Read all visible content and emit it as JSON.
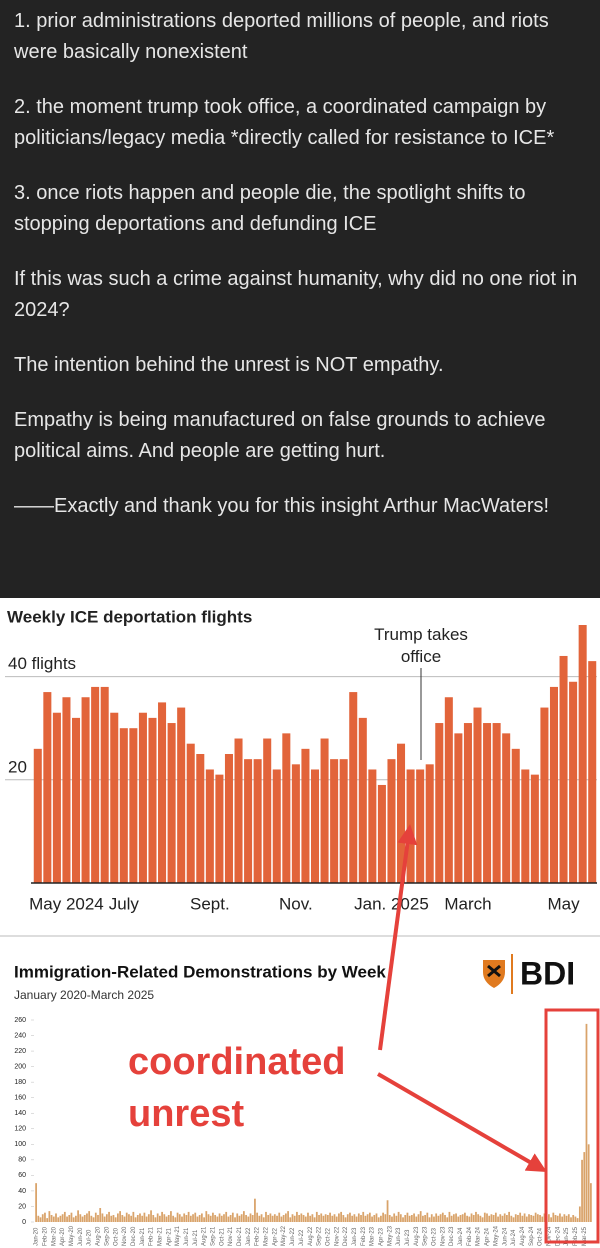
{
  "post": {
    "paragraphs": [
      "1. prior administrations deported millions of people, and riots were basically nonexistent",
      "2. the moment trump took office, a coordinated campaign by politicians/legacy media *directly called for resistance to ICE*",
      "3. once riots happen and people die, the spotlight shifts to stopping deportations and defunding ICE",
      "If this was such a crime against humanity, why did no one riot in 2024?",
      "The intention behind the unrest is NOT empathy.",
      "Empathy is being manufactured on false grounds to achieve political aims. And people are getting hurt.",
      "——Exactly and thank you for this insight Arthur MacWaters!"
    ]
  },
  "chart_data": [
    {
      "type": "bar",
      "title": "Weekly ICE deportation flights",
      "annotation": "Trump takes office",
      "categories": [
        null,
        null,
        null,
        "May 2024",
        null,
        null,
        null,
        null,
        null,
        "July",
        null,
        null,
        null,
        null,
        null,
        null,
        null,
        null,
        "Sept.",
        null,
        null,
        null,
        null,
        null,
        null,
        null,
        null,
        "Nov.",
        null,
        null,
        null,
        null,
        null,
        null,
        null,
        null,
        null,
        "Jan. 2025",
        null,
        null,
        null,
        null,
        null,
        null,
        null,
        "March",
        null,
        null,
        null,
        null,
        null,
        null,
        null,
        null,
        null,
        "May",
        null,
        null,
        null
      ],
      "values": [
        26,
        37,
        33,
        36,
        32,
        36,
        38,
        38,
        33,
        30,
        30,
        33,
        32,
        35,
        31,
        34,
        27,
        25,
        22,
        21,
        25,
        28,
        24,
        24,
        28,
        22,
        29,
        23,
        26,
        22,
        28,
        24,
        24,
        37,
        32,
        22,
        19,
        24,
        27,
        22,
        22,
        23,
        31,
        36,
        29,
        31,
        34,
        31,
        31,
        29,
        26,
        22,
        21,
        34,
        38,
        44,
        39,
        50,
        43
      ],
      "color": "#e2643a",
      "ylim": [
        0,
        50
      ],
      "yticks": [
        20,
        {
          "value": 40,
          "label": "40 flights"
        }
      ],
      "grid": true
    },
    {
      "type": "bar",
      "title": "Immigration-Related Demonstrations by Week",
      "subtitle": "January 2020-March 2025",
      "logo": "BDI",
      "annotation": "coordinated unrest",
      "categories": [
        "Jan-20",
        null,
        null,
        null,
        "Feb-20",
        null,
        null,
        null,
        "Mar-20",
        null,
        null,
        null,
        "Apr-20",
        null,
        null,
        null,
        "May-20",
        null,
        null,
        null,
        "Jun-20",
        null,
        null,
        null,
        "Jul-20",
        null,
        null,
        null,
        "Aug-20",
        null,
        null,
        null,
        "Sep-20",
        null,
        null,
        null,
        "Oct-20",
        null,
        null,
        null,
        "Nov-20",
        null,
        null,
        null,
        "Dec-20",
        null,
        null,
        null,
        "Jan-21",
        null,
        null,
        null,
        "Feb-21",
        null,
        null,
        null,
        "Mar-21",
        null,
        null,
        null,
        "Apr-21",
        null,
        null,
        null,
        "May-21",
        null,
        null,
        null,
        "Jun-21",
        null,
        null,
        null,
        "Jul-21",
        null,
        null,
        null,
        "Aug-21",
        null,
        null,
        null,
        "Sep-21",
        null,
        null,
        null,
        "Oct-21",
        null,
        null,
        null,
        "Nov-21",
        null,
        null,
        null,
        "Dec-21",
        null,
        null,
        null,
        "Jan-22",
        null,
        null,
        null,
        "Feb-22",
        null,
        null,
        null,
        "Mar-22",
        null,
        null,
        null,
        "Apr-22",
        null,
        null,
        null,
        "May-22",
        null,
        null,
        null,
        "Jun-22",
        null,
        null,
        null,
        "Jul-22",
        null,
        null,
        null,
        "Aug-22",
        null,
        null,
        null,
        "Sep-22",
        null,
        null,
        null,
        "Oct-22",
        null,
        null,
        null,
        "Nov-22",
        null,
        null,
        null,
        "Dec-22",
        null,
        null,
        null,
        "Jan-23",
        null,
        null,
        null,
        "Feb-23",
        null,
        null,
        null,
        "Mar-23",
        null,
        null,
        null,
        "Apr-23",
        null,
        null,
        null,
        "May-23",
        null,
        null,
        null,
        "Jun-23",
        null,
        null,
        null,
        "Jul-23",
        null,
        null,
        null,
        "Aug-23",
        null,
        null,
        null,
        "Sep-23",
        null,
        null,
        null,
        "Oct-23",
        null,
        null,
        null,
        "Nov-23",
        null,
        null,
        null,
        "Dec-23",
        null,
        null,
        null,
        "Jan-24",
        null,
        null,
        null,
        "Feb-24",
        null,
        null,
        null,
        "Mar-24",
        null,
        null,
        null,
        "Apr-24",
        null,
        null,
        null,
        "May-24",
        null,
        null,
        null,
        "Jun-24",
        null,
        null,
        null,
        "Jul-24",
        null,
        null,
        null,
        "Aug-24",
        null,
        null,
        null,
        "Sep-24",
        null,
        null,
        null,
        "Oct-24",
        null,
        null,
        null,
        "Nov-24",
        null,
        null,
        null,
        "Dec-24",
        null,
        null,
        null,
        "Jan-25",
        null,
        null,
        null,
        "Feb-25",
        null,
        null,
        null,
        "Mar-25",
        null,
        null,
        null
      ],
      "values": [
        50,
        8,
        6,
        10,
        12,
        5,
        14,
        9,
        7,
        11,
        6,
        8,
        10,
        13,
        7,
        9,
        12,
        6,
        8,
        15,
        10,
        7,
        9,
        11,
        14,
        8,
        6,
        12,
        9,
        18,
        11,
        7,
        10,
        13,
        8,
        9,
        6,
        11,
        14,
        9,
        7,
        12,
        10,
        8,
        13,
        6,
        9,
        11,
        8,
        12,
        7,
        10,
        15,
        9,
        6,
        11,
        8,
        13,
        10,
        7,
        9,
        14,
        8,
        6,
        12,
        10,
        7,
        11,
        9,
        13,
        8,
        10,
        12,
        7,
        9,
        11,
        6,
        14,
        10,
        8,
        12,
        9,
        7,
        11,
        8,
        10,
        13,
        7,
        9,
        12,
        6,
        11,
        8,
        10,
        14,
        9,
        7,
        11,
        9,
        30,
        12,
        8,
        10,
        6,
        13,
        9,
        11,
        8,
        10,
        8,
        12,
        7,
        9,
        11,
        14,
        6,
        10,
        8,
        13,
        9,
        11,
        9,
        7,
        12,
        8,
        10,
        6,
        13,
        9,
        11,
        8,
        10,
        9,
        12,
        8,
        10,
        7,
        11,
        13,
        9,
        6,
        10,
        12,
        8,
        10,
        7,
        11,
        9,
        13,
        8,
        10,
        12,
        7,
        9,
        11,
        6,
        8,
        12,
        10,
        28,
        9,
        7,
        11,
        8,
        13,
        10,
        6,
        9,
        12,
        8,
        9,
        11,
        7,
        10,
        14,
        8,
        9,
        12,
        6,
        10,
        7,
        11,
        8,
        10,
        12,
        9,
        6,
        13,
        8,
        10,
        11,
        7,
        9,
        10,
        12,
        8,
        7,
        11,
        9,
        13,
        10,
        8,
        6,
        12,
        11,
        8,
        10,
        9,
        12,
        7,
        10,
        8,
        11,
        9,
        13,
        8,
        6,
        10,
        9,
        12,
        8,
        11,
        7,
        10,
        9,
        8,
        12,
        10,
        9,
        7,
        11,
        8,
        10,
        6,
        12,
        9,
        8,
        11,
        7,
        10,
        8,
        10,
        6,
        9,
        7,
        5,
        20,
        80,
        90,
        255,
        100,
        50
      ],
      "color": "#d9a36a",
      "ylim": [
        0,
        260
      ],
      "yticks": [
        0,
        20,
        40,
        60,
        80,
        100,
        120,
        140,
        160,
        180,
        200,
        220,
        240,
        260
      ],
      "grid": false
    }
  ]
}
